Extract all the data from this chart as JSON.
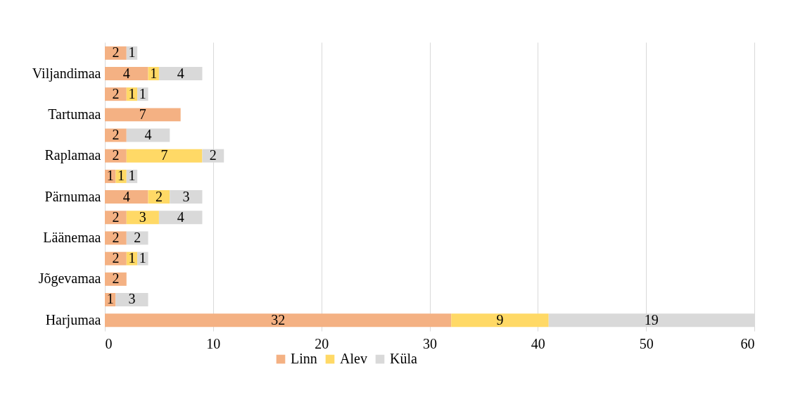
{
  "chart_data": {
    "type": "bar",
    "orientation": "horizontal",
    "stacked": true,
    "categories": [
      null,
      "Viljandimaa",
      null,
      "Tartumaa",
      null,
      "Raplamaa",
      null,
      "Pärnumaa",
      null,
      "Läänemaa",
      null,
      "Jõgevamaa",
      null,
      "Harjumaa"
    ],
    "series": [
      {
        "name": "Linn",
        "color": "#f4b183",
        "values": [
          2,
          4,
          2,
          7,
          2,
          2,
          1,
          4,
          2,
          2,
          2,
          2,
          1,
          32
        ]
      },
      {
        "name": "Alev",
        "color": "#ffd966",
        "values": [
          null,
          1,
          1,
          null,
          null,
          7,
          1,
          2,
          3,
          null,
          1,
          null,
          null,
          9
        ]
      },
      {
        "name": "Küla",
        "color": "#d9d9d9",
        "values": [
          1,
          4,
          1,
          null,
          4,
          2,
          1,
          3,
          4,
          2,
          1,
          null,
          3,
          19
        ]
      }
    ],
    "xlim": [
      0,
      60
    ],
    "xticks": [
      0,
      10,
      20,
      30,
      40,
      50,
      60
    ],
    "grid": "x",
    "legend": "bottom",
    "data_labels": true
  }
}
